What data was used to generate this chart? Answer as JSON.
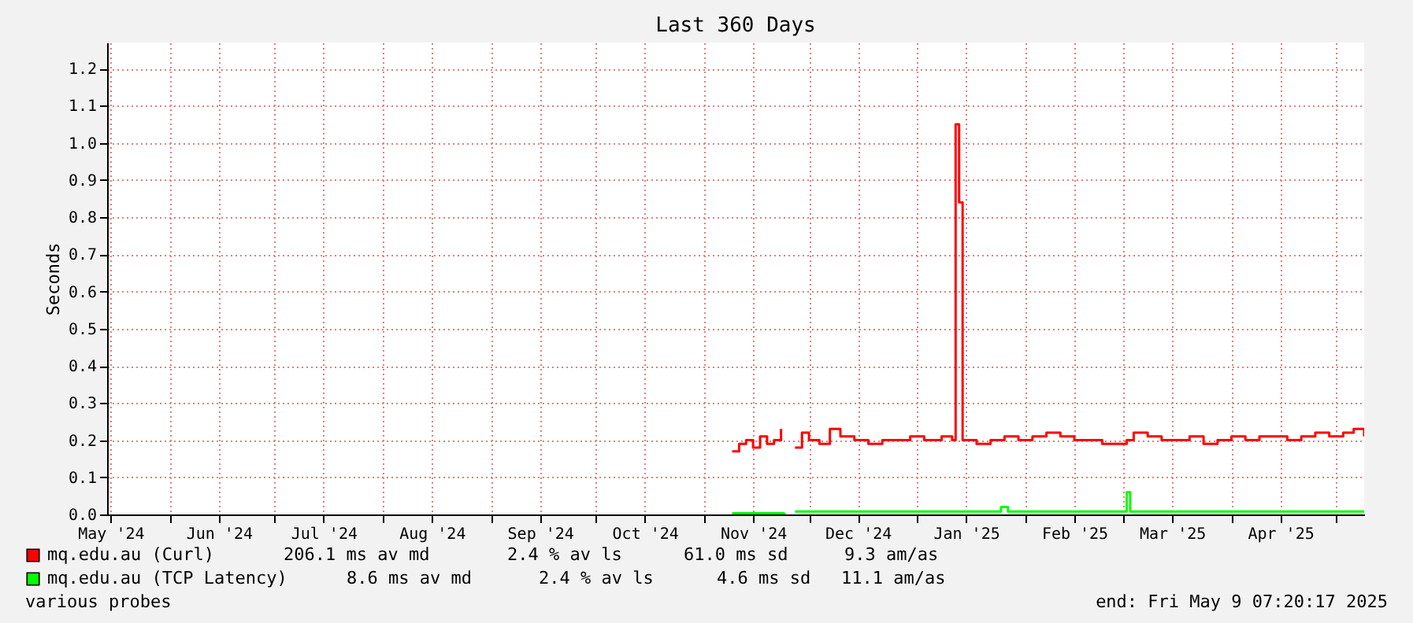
{
  "chart_data": {
    "type": "step",
    "title": "Last 360 Days",
    "ylabel": "Seconds",
    "xlim": [
      "2024-05-14",
      "2025-05-09"
    ],
    "xticks": [
      {
        "value": "2024-05-15",
        "label": "May '24"
      },
      {
        "value": "2024-06-01",
        "label": null
      },
      {
        "value": "2024-06-15",
        "label": "Jun '24"
      },
      {
        "value": "2024-07-01",
        "label": null
      },
      {
        "value": "2024-07-15",
        "label": "Jul '24"
      },
      {
        "value": "2024-08-01",
        "label": null
      },
      {
        "value": "2024-08-15",
        "label": "Aug '24"
      },
      {
        "value": "2024-09-01",
        "label": null
      },
      {
        "value": "2024-09-15",
        "label": "Sep '24"
      },
      {
        "value": "2024-10-01",
        "label": null
      },
      {
        "value": "2024-10-15",
        "label": "Oct '24"
      },
      {
        "value": "2024-11-01",
        "label": null
      },
      {
        "value": "2024-11-15",
        "label": "Nov '24"
      },
      {
        "value": "2024-12-01",
        "label": null
      },
      {
        "value": "2024-12-15",
        "label": "Dec '24"
      },
      {
        "value": "2025-01-01",
        "label": null
      },
      {
        "value": "2025-01-15",
        "label": "Jan '25"
      },
      {
        "value": "2025-02-01",
        "label": null
      },
      {
        "value": "2025-02-15",
        "label": "Feb '25"
      },
      {
        "value": "2025-03-01",
        "label": null
      },
      {
        "value": "2025-03-15",
        "label": "Mar '25"
      },
      {
        "value": "2025-04-01",
        "label": null
      },
      {
        "value": "2025-04-15",
        "label": "Apr '25"
      },
      {
        "value": "2025-05-01",
        "label": null
      }
    ],
    "ylim": [
      0,
      1.27
    ],
    "yticks": [
      {
        "value": 0,
        "label": "0.0"
      },
      {
        "value": 0.1,
        "label": "0.1"
      },
      {
        "value": 0.2,
        "label": "0.2"
      },
      {
        "value": 0.3,
        "label": "0.3"
      },
      {
        "value": 0.4,
        "label": "0.4"
      },
      {
        "value": 0.5,
        "label": "0.5"
      },
      {
        "value": 0.6,
        "label": "0.6"
      },
      {
        "value": 0.7,
        "label": "0.7"
      },
      {
        "value": 0.8,
        "label": "0.8"
      },
      {
        "value": 0.9,
        "label": "0.9"
      },
      {
        "value": 1.0,
        "label": "1.0"
      },
      {
        "value": 1.1,
        "label": "1.1"
      },
      {
        "value": 1.2,
        "label": "1.2"
      }
    ],
    "grid": true,
    "legend": "bottom left",
    "series": [
      {
        "name": "mq.edu.au (Curl)",
        "color": "#ff0000",
        "x": [
          "2024-11-09",
          "2024-11-11",
          "2024-11-13",
          "2024-11-15",
          "2024-11-17",
          "2024-11-19",
          "2024-11-21",
          "2024-11-23",
          "2024-11-25",
          "2024-11-27",
          "2024-11-29",
          "2024-12-01",
          "2024-12-04",
          "2024-12-07",
          "2024-12-10",
          "2024-12-14",
          "2024-12-18",
          "2024-12-22",
          "2024-12-26",
          "2024-12-30",
          "2025-01-03",
          "2025-01-08",
          "2025-01-11",
          "2025-01-12",
          "2025-01-13",
          "2025-01-14",
          "2025-01-18",
          "2025-01-22",
          "2025-01-26",
          "2025-01-30",
          "2025-02-03",
          "2025-02-07",
          "2025-02-11",
          "2025-02-15",
          "2025-02-19",
          "2025-02-23",
          "2025-02-27",
          "2025-03-02",
          "2025-03-04",
          "2025-03-08",
          "2025-03-12",
          "2025-03-16",
          "2025-03-20",
          "2025-03-24",
          "2025-03-28",
          "2025-04-01",
          "2025-04-05",
          "2025-04-09",
          "2025-04-13",
          "2025-04-17",
          "2025-04-21",
          "2025-04-25",
          "2025-04-29",
          "2025-05-03",
          "2025-05-06",
          "2025-05-09"
        ],
        "values": [
          0.17,
          0.19,
          0.2,
          0.18,
          0.21,
          0.19,
          0.2,
          0.23,
          null,
          0.18,
          0.22,
          0.2,
          0.19,
          0.23,
          0.21,
          0.2,
          0.19,
          0.2,
          0.2,
          0.21,
          0.2,
          0.21,
          0.2,
          1.05,
          0.84,
          0.2,
          0.19,
          0.2,
          0.21,
          0.2,
          0.21,
          0.22,
          0.21,
          0.2,
          0.2,
          0.19,
          0.19,
          0.2,
          0.22,
          0.21,
          0.2,
          0.2,
          0.21,
          0.19,
          0.2,
          0.21,
          0.2,
          0.21,
          0.21,
          0.2,
          0.21,
          0.22,
          0.21,
          0.22,
          0.23,
          0.21
        ]
      },
      {
        "name": "mq.edu.au (TCP Latency)",
        "color": "#00ff00",
        "x": [
          "2024-11-09",
          "2024-11-24",
          "2024-11-25",
          "2024-11-27",
          "2025-01-24",
          "2025-01-25",
          "2025-01-27",
          "2025-03-01",
          "2025-03-02",
          "2025-03-03",
          "2025-05-09"
        ],
        "values": [
          0.003,
          0.005,
          null,
          0.008,
          0.008,
          0.02,
          0.008,
          0.008,
          0.06,
          0.008,
          0.008
        ]
      }
    ],
    "annotations": [
      "206.1 ms av md",
      "2.4 % av ls",
      "61.0 ms sd",
      "9.3   am/as",
      "8.6 ms av md",
      "2.4 % av ls",
      "4.6 ms sd",
      "11.1   am/as",
      "various probes",
      "end: Fri May  9 07:20:17 2025"
    ]
  }
}
